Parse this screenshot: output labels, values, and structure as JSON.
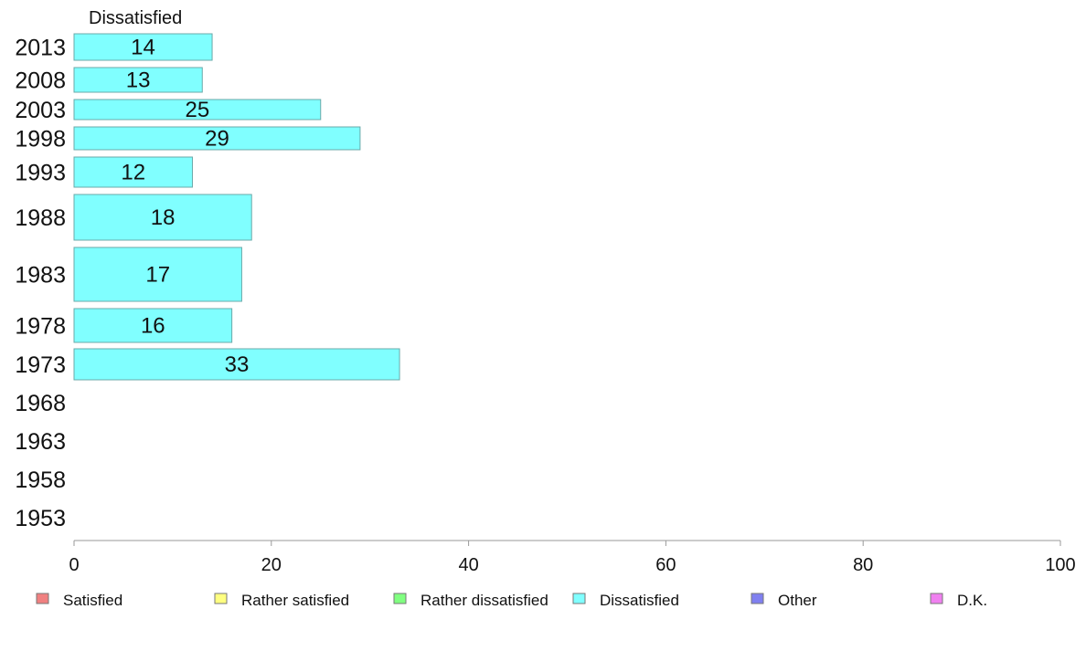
{
  "chart_data": {
    "type": "bar",
    "orientation": "horizontal",
    "title": "Dissatisfied",
    "categories": [
      "2013",
      "2008",
      "2003",
      "1998",
      "1993",
      "1988",
      "1983",
      "1978",
      "1973",
      "1968",
      "1963",
      "1958",
      "1953"
    ],
    "series": [
      {
        "name": "Dissatisfied",
        "values": [
          14,
          13,
          25,
          29,
          12,
          18,
          17,
          16,
          33,
          null,
          null,
          null,
          null
        ],
        "color": "#80ffff"
      }
    ],
    "xlim": [
      0,
      100
    ],
    "xticks": [
      "0",
      "20",
      "40",
      "60",
      "80",
      "100"
    ],
    "grid": false,
    "legend": {
      "placement": "bottom",
      "items": [
        {
          "label": "Satisfied",
          "color": "#f08080"
        },
        {
          "label": "Rather satisfied",
          "color": "#ffff80"
        },
        {
          "label": "Rather dissatisfied",
          "color": "#80ff80"
        },
        {
          "label": "Dissatisfied",
          "color": "#80ffff"
        },
        {
          "label": "Other",
          "color": "#8080f0"
        },
        {
          "label": "D.K.",
          "color": "#f080f0"
        }
      ]
    }
  }
}
